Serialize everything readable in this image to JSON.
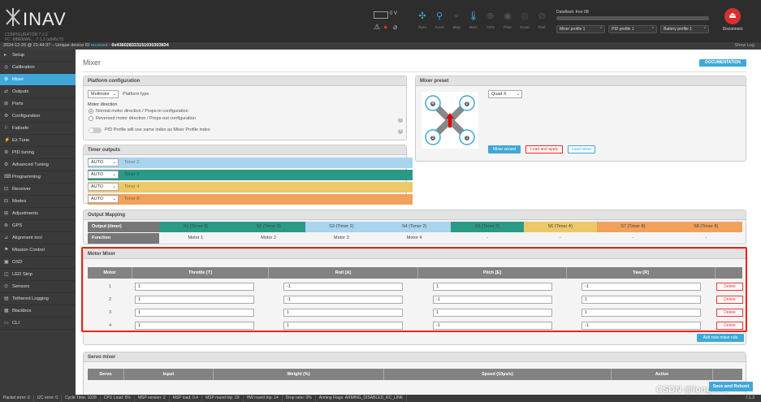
{
  "header": {
    "brand": "INAV",
    "version_line1": "CONFIGURATOR    7.1.2",
    "version_line2": "FC: MBRMAN....    7.1.2 (a5d6c7f)",
    "voltage": "0 V",
    "sensors": [
      {
        "label": "Gyro",
        "icon": "gyro-icon",
        "state": "on"
      },
      {
        "label": "Accel",
        "icon": "accel-icon",
        "state": "on"
      },
      {
        "label": "Mag",
        "icon": "mag-icon",
        "state": "off"
      },
      {
        "label": "Baro",
        "icon": "baro-icon",
        "state": "on"
      },
      {
        "label": "GPS",
        "icon": "gps-icon",
        "state": "off"
      },
      {
        "label": "Flow",
        "icon": "flow-icon",
        "state": "off"
      },
      {
        "label": "Sonar",
        "icon": "sonar-icon",
        "state": "off"
      },
      {
        "label": "Pitot",
        "icon": "pitot-icon",
        "state": "off"
      }
    ],
    "dataflash": "Dataflash: free 0B",
    "profiles": {
      "mixer": "Mixer profile 1",
      "pid": "PID profile 1",
      "battery": "Battery profile 1"
    },
    "disconnect_label": "Disconnect"
  },
  "status_line": {
    "datetime": "2024-12-26 @ 21:44:37",
    "sep": " – Unique device ID ",
    "received": "received",
    "dash": " - ",
    "uid": "0x436028333151030303834",
    "show_log": "Show Log"
  },
  "sidebar": {
    "items": [
      {
        "label": "Setup",
        "icon": "wrench-icon"
      },
      {
        "label": "Calibration",
        "icon": "target-icon"
      },
      {
        "label": "Mixer",
        "icon": "mixer-icon",
        "active": true
      },
      {
        "label": "Outputs",
        "icon": "outputs-icon"
      },
      {
        "label": "Ports",
        "icon": "ports-icon"
      },
      {
        "label": "Configuration",
        "icon": "gear-icon"
      },
      {
        "label": "Failsafe",
        "icon": "failsafe-icon"
      },
      {
        "label": "Ez Tune",
        "icon": "eztune-icon"
      },
      {
        "label": "PID tuning",
        "icon": "pid-icon"
      },
      {
        "label": "Advanced Tuning",
        "icon": "advanced-icon"
      },
      {
        "label": "Programming",
        "icon": "programming-icon"
      },
      {
        "label": "Receiver",
        "icon": "receiver-icon"
      },
      {
        "label": "Modes",
        "icon": "modes-icon"
      },
      {
        "label": "Adjustments",
        "icon": "adjustments-icon"
      },
      {
        "label": "GPS",
        "icon": "gps-icon"
      },
      {
        "label": "Alignment tool",
        "icon": "alignment-icon"
      },
      {
        "label": "Mission Control",
        "icon": "mission-icon"
      },
      {
        "label": "OSD",
        "icon": "osd-icon"
      },
      {
        "label": "LED Strip",
        "icon": "led-icon"
      },
      {
        "label": "Sensors",
        "icon": "sensors-icon"
      },
      {
        "label": "Tethered Logging",
        "icon": "logging-icon"
      },
      {
        "label": "Blackbox",
        "icon": "blackbox-icon"
      },
      {
        "label": "CLI",
        "icon": "cli-icon"
      }
    ]
  },
  "page": {
    "title": "Mixer",
    "documentation": "DOCUMENTATION"
  },
  "platform": {
    "title": "Platform configuration",
    "platform_value": "Multirotor",
    "platform_label": "Platform type",
    "motor_direction_title": "Motor direction",
    "normal": "Normal motor direction / Props-in configuration",
    "reversed": "Reversed motor direction / Props-out configuration",
    "pid_profile_text": "PID Profile will use same index as Mixer Profile index"
  },
  "mixer_preset": {
    "title": "Mixer preset",
    "value": "Quad X",
    "wizard": "Mixer wizard",
    "load_apply": "Load and apply",
    "load_mixer": "Load mixer",
    "motor_labels": [
      "4",
      "2",
      "3",
      "1"
    ]
  },
  "timer_outputs": {
    "title": "Timer outputs",
    "rows": [
      {
        "value": "AUTO",
        "label": "Timer 2",
        "color": "#a8d4ed"
      },
      {
        "value": "AUTO",
        "label": "Timer 3",
        "color": "#2a9a86"
      },
      {
        "value": "AUTO",
        "label": "Timer 4",
        "color": "#edc868"
      },
      {
        "value": "AUTO",
        "label": "Timer 8",
        "color": "#f0a25c"
      }
    ]
  },
  "output_mapping": {
    "title": "Output Mapping",
    "head_output": "Output (timer)",
    "head_function": "Function",
    "outputs": [
      {
        "label": "S1 (Timer 3)",
        "color": "#2a9a86"
      },
      {
        "label": "S2 (Timer 3)",
        "color": "#2a9a86"
      },
      {
        "label": "S3 (Timer 2)",
        "color": "#a8d4ed"
      },
      {
        "label": "S4 (Timer 2)",
        "color": "#a8d4ed"
      },
      {
        "label": "S5 (Timer 3)",
        "color": "#2a9a86"
      },
      {
        "label": "S6 (Timer 4)",
        "color": "#edc868"
      },
      {
        "label": "S7 (Timer 8)",
        "color": "#f0a25c"
      },
      {
        "label": "S8 (Timer 8)",
        "color": "#f0a25c"
      }
    ],
    "functions": [
      "Motor 1",
      "Motor 2",
      "Motor 3",
      "Motor 4",
      "-",
      "-",
      "-",
      "-"
    ]
  },
  "motor_mixer": {
    "title": "Motor Mixer",
    "columns": [
      "Motor",
      "Throttle [T]",
      "Roll [A]",
      "Pitch [E]",
      "Yaw [R]"
    ],
    "rows": [
      {
        "motor": "1",
        "throttle": "1",
        "roll": "-1",
        "pitch": "1",
        "yaw": "-1",
        "delete": "Delete"
      },
      {
        "motor": "2",
        "throttle": "1",
        "roll": "-1",
        "pitch": "-1",
        "yaw": "1",
        "delete": "Delete"
      },
      {
        "motor": "3",
        "throttle": "1",
        "roll": "1",
        "pitch": "1",
        "yaw": "1",
        "delete": "Delete"
      },
      {
        "motor": "4",
        "throttle": "1",
        "roll": "1",
        "pitch": "-1",
        "yaw": "-1",
        "delete": "Delete"
      }
    ],
    "add_rule": "Add new mixer rule"
  },
  "servo_mixer": {
    "title": "Servo mixer",
    "columns": [
      "Servo",
      "Input",
      "Weight (%)",
      "Speed (10µs/s)",
      "Active"
    ]
  },
  "save_reboot": "Save and Reboot",
  "watermark": "CSDN @longssiz",
  "footer": {
    "items": [
      "Packet error: 0",
      "I2C error: 0",
      "Cycle Time: 1028",
      "CPU Load: 5%",
      "MSP version: 2",
      "MSP load: 0.4",
      "MSP round trip: 29",
      "HW round trip: 14",
      "Drop ratio: 0%",
      "Arming Flags: ARMING_DISABLED_RC_LINK"
    ],
    "version": "7.1.2"
  },
  "colors": {
    "accent": "#3fa8d8",
    "danger": "#e22222",
    "sidebar_bg": "#3a3a3a",
    "header_bg": "#2d2d2d"
  }
}
